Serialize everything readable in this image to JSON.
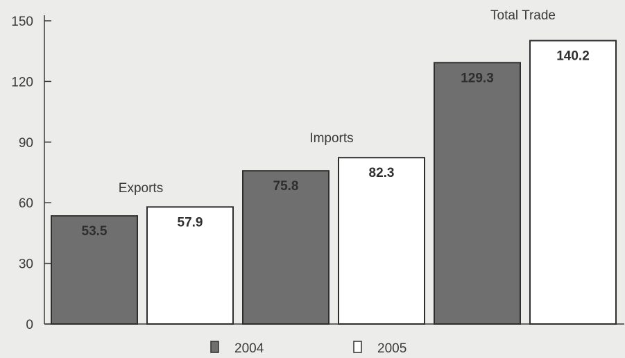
{
  "chart_data": {
    "type": "bar",
    "categories": [
      "Exports",
      "Imports",
      "Total Trade"
    ],
    "series": [
      {
        "name": "2004",
        "values": [
          53.5,
          75.8,
          129.3
        ],
        "color": "#6f6f6f"
      },
      {
        "name": "2005",
        "values": [
          57.9,
          82.3,
          140.2
        ],
        "color": "#ffffff"
      }
    ],
    "value_labels": [
      [
        "53.5",
        "75.8",
        "129.3"
      ],
      [
        "57.9",
        "82.3",
        "140.2"
      ]
    ],
    "y_ticks": [
      "0",
      "30",
      "60",
      "90",
      "120",
      "150"
    ],
    "ylim": [
      0,
      150
    ],
    "title": "",
    "xlabel": "",
    "ylabel": "",
    "grid": false,
    "legend_position": "bottom-center"
  },
  "colors": {
    "background": "#ececea",
    "axis": "#3a3a3a",
    "bar_2004": "#6f6f6f",
    "bar_2005": "#ffffff",
    "label_on_dark": "#2e2e2e",
    "label_on_light": "#2e2e2e"
  }
}
